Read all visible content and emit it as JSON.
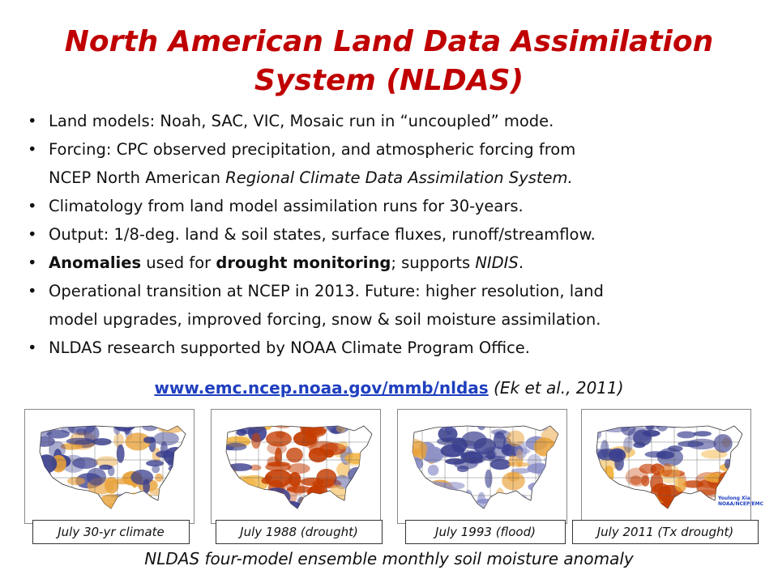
{
  "slide": {
    "title_line1": "North American Land Data Assimilation",
    "title_line2": "System (NLDAS)",
    "bullets": {
      "b1": "Land models: Noah, SAC, VIC, Mosaic run in “uncoupled” mode.",
      "b2_a": "Forcing: CPC observed precipitation, and atmospheric forcing from",
      "b2_b": "NCEP North American ",
      "b2_c": "Regional Climate Data Assimilation System.",
      "b3": "Climatology from land model assimilation runs for 30-years.",
      "b4": "Output: 1/8-deg. land & soil states, surface fluxes, runoff/streamflow.",
      "b5_a": "Anomalies",
      "b5_b": " used for ",
      "b5_c": "drought monitoring",
      "b5_d": "; supports ",
      "b5_e": "NIDIS",
      "b5_f": ".",
      "b6_a": "Operational transition at NCEP in 2013. Future: higher resolution, land",
      "b6_b": "model upgrades, improved forcing, snow & soil moisture assimilation.",
      "b7": "NLDAS research supported by NOAA Climate Program Office."
    },
    "link_url": "www.emc.ncep.noaa.gov/mmb/nldas",
    "link_citation": " (Ek et al., 2011)",
    "maps": [
      {
        "caption": "July 30-yr climate",
        "anomaly": "mixed"
      },
      {
        "caption": "July 1988 (drought)",
        "anomaly": "dry"
      },
      {
        "caption": "July 1993 (flood)",
        "anomaly": "wet"
      },
      {
        "caption": "July 2011 (Tx drought)",
        "anomaly": "south-dry"
      }
    ],
    "map_credit_line1": "Youlong Xia",
    "map_credit_line2": "NOAA/NCEP/EMC",
    "bottom_caption": "NLDAS four-model ensemble monthly soil moisture anomaly",
    "colors": {
      "title": "#c00000",
      "link": "#1f3fbf",
      "wet": "#3a3f8f",
      "dry": "#c43c00",
      "neutral": "#ffffff"
    }
  }
}
